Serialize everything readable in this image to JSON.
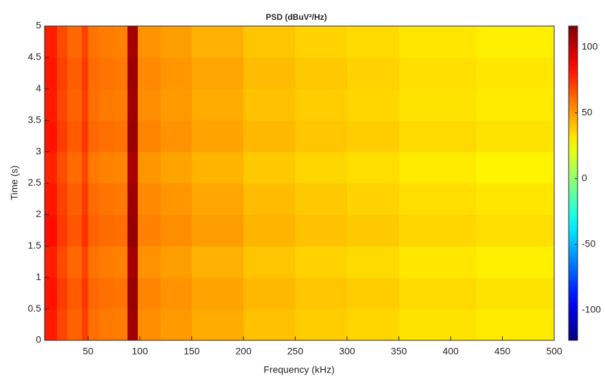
{
  "chart_data": {
    "type": "heatmap",
    "title": "PSD (dBuV²/Hz)",
    "x_label": "Frequency (kHz)",
    "y_label": "Time (s)",
    "colormap": "jet",
    "xlim": [
      8,
      500
    ],
    "ylim": [
      0,
      5
    ],
    "xticks": [
      50,
      100,
      150,
      200,
      250,
      300,
      350,
      400,
      450,
      500
    ],
    "yticks": [
      0,
      0.5,
      1,
      1.5,
      2,
      2.5,
      3,
      3.5,
      4,
      4.5,
      5
    ],
    "clim": [
      -123,
      116
    ],
    "cticks": [
      -100,
      -50,
      0,
      50,
      100
    ],
    "xbins": [
      8,
      20,
      30,
      44,
      50,
      60,
      75,
      88,
      98,
      120,
      150,
      200,
      250,
      300,
      350,
      425,
      500
    ],
    "ybins": [
      0,
      0.5,
      1,
      1.5,
      2,
      2.5,
      3,
      3.5,
      4,
      4.5,
      5
    ],
    "values": [
      [
        80,
        70,
        63,
        72,
        60,
        58,
        57,
        108,
        53,
        50,
        46,
        41,
        38,
        36,
        33,
        31
      ],
      [
        82,
        72,
        65,
        74,
        62,
        60,
        59,
        110,
        55,
        52,
        48,
        43,
        40,
        38,
        35,
        33
      ],
      [
        79,
        69,
        62,
        71,
        59,
        57,
        56,
        107,
        52,
        49,
        45,
        40,
        37,
        35,
        32,
        30
      ],
      [
        83,
        73,
        66,
        75,
        63,
        61,
        60,
        111,
        56,
        53,
        49,
        44,
        41,
        39,
        36,
        34
      ],
      [
        81,
        71,
        64,
        73,
        61,
        59,
        58,
        109,
        54,
        51,
        47,
        42,
        39,
        37,
        34,
        32
      ],
      [
        78,
        68,
        61,
        70,
        58,
        56,
        55,
        106,
        51,
        48,
        44,
        39,
        36,
        34,
        31,
        29
      ],
      [
        82,
        72,
        65,
        74,
        62,
        60,
        59,
        110,
        55,
        52,
        48,
        43,
        40,
        38,
        35,
        33
      ],
      [
        80,
        70,
        63,
        72,
        60,
        58,
        57,
        108,
        53,
        50,
        46,
        41,
        38,
        36,
        33,
        31
      ],
      [
        81,
        71,
        64,
        73,
        61,
        59,
        58,
        109,
        54,
        51,
        47,
        42,
        39,
        37,
        34,
        32
      ],
      [
        79,
        69,
        62,
        71,
        59,
        57,
        56,
        107,
        52,
        49,
        45,
        40,
        37,
        35,
        32,
        30
      ]
    ]
  }
}
